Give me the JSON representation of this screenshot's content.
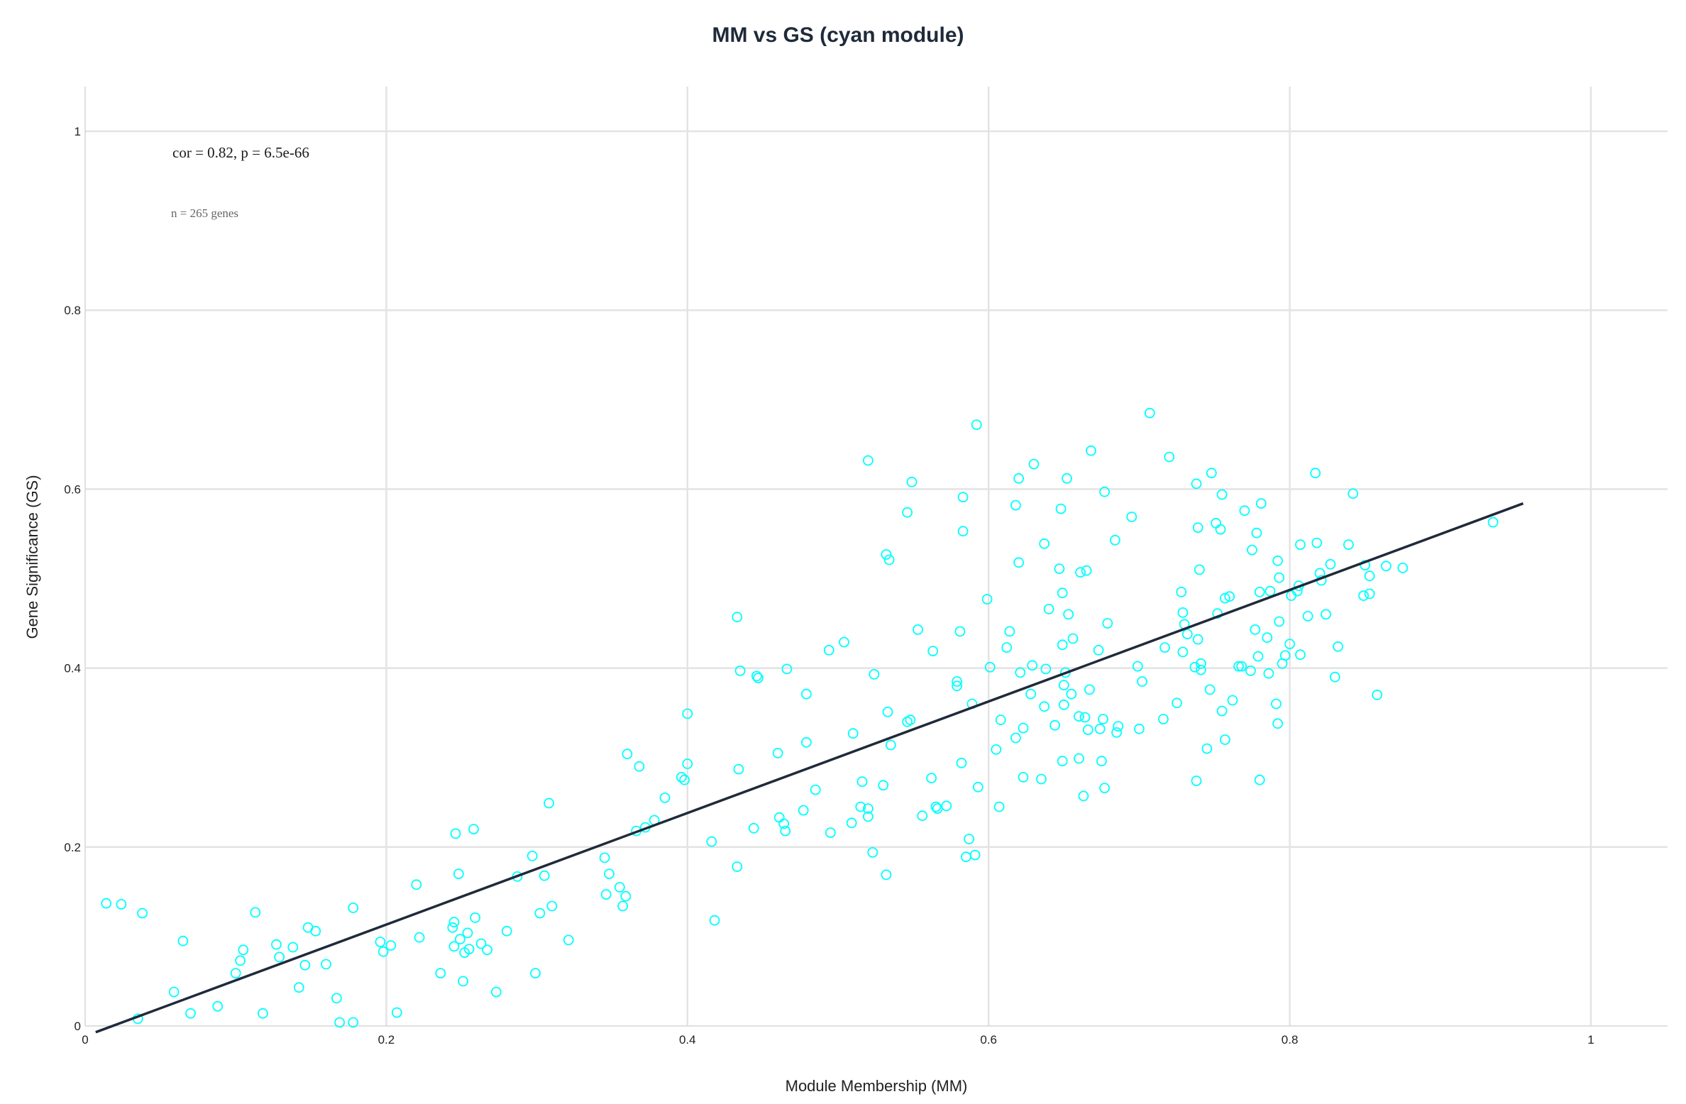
{
  "chart_data": {
    "type": "scatter",
    "title": "MM vs GS (cyan module)",
    "xlabel": "Module Membership (MM)",
    "ylabel": "Gene Significance (GS)",
    "xlim": [
      0,
      1.05
    ],
    "ylim": [
      0,
      1.05
    ],
    "x_ticks": [
      0,
      0.2,
      0.4,
      0.6,
      0.8,
      1
    ],
    "y_ticks": [
      0,
      0.2,
      0.4,
      0.6,
      0.8,
      1
    ],
    "x_tick_labels": [
      "0",
      "0.2",
      "0.4",
      "0.6",
      "0.8",
      "1"
    ],
    "y_tick_labels": [
      "0",
      "0.2",
      "0.4",
      "0.6",
      "0.8",
      "1"
    ],
    "grid": true,
    "marker_color": "#00ffff",
    "line_color": "#1f2a3a",
    "annotation_main": "cor = 0.82, p = 6.5e-66",
    "annotation_sub": "n = 265 genes",
    "fit_line": {
      "x": [
        0.007,
        0.955
      ],
      "y": [
        -0.007,
        0.584
      ]
    },
    "points": [
      [
        0.014,
        0.137
      ],
      [
        0.024,
        0.136
      ],
      [
        0.038,
        0.126
      ],
      [
        0.035,
        0.008
      ],
      [
        0.059,
        0.038
      ],
      [
        0.065,
        0.095
      ],
      [
        0.07,
        0.014
      ],
      [
        0.088,
        0.022
      ],
      [
        0.1,
        0.059
      ],
      [
        0.103,
        0.073
      ],
      [
        0.105,
        0.085
      ],
      [
        0.113,
        0.127
      ],
      [
        0.118,
        0.014
      ],
      [
        0.127,
        0.091
      ],
      [
        0.129,
        0.077
      ],
      [
        0.138,
        0.088
      ],
      [
        0.142,
        0.043
      ],
      [
        0.146,
        0.068
      ],
      [
        0.148,
        0.11
      ],
      [
        0.153,
        0.106
      ],
      [
        0.16,
        0.069
      ],
      [
        0.167,
        0.031
      ],
      [
        0.169,
        0.004
      ],
      [
        0.178,
        0.132
      ],
      [
        0.178,
        0.004
      ],
      [
        0.196,
        0.094
      ],
      [
        0.198,
        0.083
      ],
      [
        0.203,
        0.09
      ],
      [
        0.207,
        0.015
      ],
      [
        0.22,
        0.158
      ],
      [
        0.222,
        0.099
      ],
      [
        0.236,
        0.059
      ],
      [
        0.244,
        0.11
      ],
      [
        0.245,
        0.116
      ],
      [
        0.245,
        0.089
      ],
      [
        0.246,
        0.215
      ],
      [
        0.248,
        0.17
      ],
      [
        0.249,
        0.097
      ],
      [
        0.251,
        0.05
      ],
      [
        0.252,
        0.082
      ],
      [
        0.254,
        0.104
      ],
      [
        0.255,
        0.086
      ],
      [
        0.258,
        0.22
      ],
      [
        0.259,
        0.121
      ],
      [
        0.263,
        0.092
      ],
      [
        0.267,
        0.085
      ],
      [
        0.273,
        0.038
      ],
      [
        0.28,
        0.106
      ],
      [
        0.287,
        0.167
      ],
      [
        0.297,
        0.19
      ],
      [
        0.299,
        0.059
      ],
      [
        0.302,
        0.126
      ],
      [
        0.305,
        0.168
      ],
      [
        0.308,
        0.249
      ],
      [
        0.31,
        0.134
      ],
      [
        0.321,
        0.096
      ],
      [
        0.345,
        0.188
      ],
      [
        0.346,
        0.147
      ],
      [
        0.348,
        0.17
      ],
      [
        0.355,
        0.155
      ],
      [
        0.357,
        0.134
      ],
      [
        0.359,
        0.145
      ],
      [
        0.36,
        0.304
      ],
      [
        0.366,
        0.218
      ],
      [
        0.368,
        0.29
      ],
      [
        0.372,
        0.222
      ],
      [
        0.378,
        0.23
      ],
      [
        0.385,
        0.255
      ],
      [
        0.396,
        0.278
      ],
      [
        0.398,
        0.275
      ],
      [
        0.4,
        0.293
      ],
      [
        0.4,
        0.349
      ],
      [
        0.416,
        0.206
      ],
      [
        0.418,
        0.118
      ],
      [
        0.433,
        0.457
      ],
      [
        0.433,
        0.178
      ],
      [
        0.434,
        0.287
      ],
      [
        0.435,
        0.397
      ],
      [
        0.444,
        0.221
      ],
      [
        0.446,
        0.391
      ],
      [
        0.447,
        0.389
      ],
      [
        0.46,
        0.305
      ],
      [
        0.461,
        0.233
      ],
      [
        0.464,
        0.226
      ],
      [
        0.465,
        0.218
      ],
      [
        0.466,
        0.399
      ],
      [
        0.477,
        0.241
      ],
      [
        0.479,
        0.371
      ],
      [
        0.479,
        0.317
      ],
      [
        0.485,
        0.264
      ],
      [
        0.494,
        0.42
      ],
      [
        0.495,
        0.216
      ],
      [
        0.504,
        0.429
      ],
      [
        0.509,
        0.227
      ],
      [
        0.51,
        0.327
      ],
      [
        0.515,
        0.245
      ],
      [
        0.516,
        0.273
      ],
      [
        0.52,
        0.234
      ],
      [
        0.52,
        0.243
      ],
      [
        0.52,
        0.632
      ],
      [
        0.523,
        0.194
      ],
      [
        0.524,
        0.393
      ],
      [
        0.53,
        0.269
      ],
      [
        0.532,
        0.527
      ],
      [
        0.532,
        0.169
      ],
      [
        0.533,
        0.351
      ],
      [
        0.534,
        0.521
      ],
      [
        0.535,
        0.314
      ],
      [
        0.546,
        0.34
      ],
      [
        0.546,
        0.574
      ],
      [
        0.548,
        0.342
      ],
      [
        0.549,
        0.608
      ],
      [
        0.553,
        0.443
      ],
      [
        0.556,
        0.235
      ],
      [
        0.562,
        0.277
      ],
      [
        0.563,
        0.419
      ],
      [
        0.565,
        0.245
      ],
      [
        0.566,
        0.243
      ],
      [
        0.572,
        0.246
      ],
      [
        0.579,
        0.385
      ],
      [
        0.579,
        0.38
      ],
      [
        0.581,
        0.441
      ],
      [
        0.582,
        0.294
      ],
      [
        0.583,
        0.591
      ],
      [
        0.583,
        0.553
      ],
      [
        0.585,
        0.189
      ],
      [
        0.587,
        0.209
      ],
      [
        0.589,
        0.36
      ],
      [
        0.591,
        0.191
      ],
      [
        0.592,
        0.672
      ],
      [
        0.593,
        0.267
      ],
      [
        0.599,
        0.477
      ],
      [
        0.601,
        0.401
      ],
      [
        0.605,
        0.309
      ],
      [
        0.607,
        0.245
      ],
      [
        0.608,
        0.342
      ],
      [
        0.612,
        0.423
      ],
      [
        0.614,
        0.441
      ],
      [
        0.618,
        0.582
      ],
      [
        0.618,
        0.322
      ],
      [
        0.62,
        0.518
      ],
      [
        0.62,
        0.612
      ],
      [
        0.621,
        0.395
      ],
      [
        0.623,
        0.278
      ],
      [
        0.623,
        0.333
      ],
      [
        0.628,
        0.371
      ],
      [
        0.629,
        0.403
      ],
      [
        0.63,
        0.628
      ],
      [
        0.635,
        0.276
      ],
      [
        0.637,
        0.539
      ],
      [
        0.637,
        0.357
      ],
      [
        0.638,
        0.399
      ],
      [
        0.64,
        0.466
      ],
      [
        0.644,
        0.336
      ],
      [
        0.647,
        0.511
      ],
      [
        0.648,
        0.578
      ],
      [
        0.649,
        0.296
      ],
      [
        0.649,
        0.426
      ],
      [
        0.649,
        0.484
      ],
      [
        0.65,
        0.381
      ],
      [
        0.65,
        0.359
      ],
      [
        0.651,
        0.395
      ],
      [
        0.652,
        0.612
      ],
      [
        0.653,
        0.46
      ],
      [
        0.655,
        0.371
      ],
      [
        0.656,
        0.433
      ],
      [
        0.66,
        0.299
      ],
      [
        0.66,
        0.346
      ],
      [
        0.661,
        0.507
      ],
      [
        0.663,
        0.257
      ],
      [
        0.664,
        0.345
      ],
      [
        0.665,
        0.509
      ],
      [
        0.666,
        0.331
      ],
      [
        0.667,
        0.376
      ],
      [
        0.668,
        0.643
      ],
      [
        0.673,
        0.42
      ],
      [
        0.674,
        0.332
      ],
      [
        0.675,
        0.296
      ],
      [
        0.676,
        0.343
      ],
      [
        0.677,
        0.266
      ],
      [
        0.677,
        0.597
      ],
      [
        0.679,
        0.45
      ],
      [
        0.684,
        0.543
      ],
      [
        0.685,
        0.328
      ],
      [
        0.686,
        0.335
      ],
      [
        0.695,
        0.569
      ],
      [
        0.699,
        0.402
      ],
      [
        0.7,
        0.332
      ],
      [
        0.702,
        0.385
      ],
      [
        0.707,
        0.685
      ],
      [
        0.716,
        0.343
      ],
      [
        0.717,
        0.423
      ],
      [
        0.72,
        0.636
      ],
      [
        0.725,
        0.361
      ],
      [
        0.728,
        0.485
      ],
      [
        0.729,
        0.418
      ],
      [
        0.729,
        0.462
      ],
      [
        0.73,
        0.449
      ],
      [
        0.732,
        0.438
      ],
      [
        0.737,
        0.401
      ],
      [
        0.738,
        0.274
      ],
      [
        0.738,
        0.606
      ],
      [
        0.739,
        0.432
      ],
      [
        0.739,
        0.557
      ],
      [
        0.74,
        0.51
      ],
      [
        0.741,
        0.405
      ],
      [
        0.741,
        0.398
      ],
      [
        0.745,
        0.31
      ],
      [
        0.747,
        0.376
      ],
      [
        0.748,
        0.618
      ],
      [
        0.751,
        0.562
      ],
      [
        0.752,
        0.461
      ],
      [
        0.754,
        0.555
      ],
      [
        0.755,
        0.594
      ],
      [
        0.755,
        0.352
      ],
      [
        0.757,
        0.32
      ],
      [
        0.757,
        0.478
      ],
      [
        0.76,
        0.48
      ],
      [
        0.762,
        0.364
      ],
      [
        0.766,
        0.402
      ],
      [
        0.768,
        0.402
      ],
      [
        0.77,
        0.576
      ],
      [
        0.774,
        0.397
      ],
      [
        0.775,
        0.532
      ],
      [
        0.777,
        0.443
      ],
      [
        0.778,
        0.551
      ],
      [
        0.779,
        0.413
      ],
      [
        0.78,
        0.275
      ],
      [
        0.78,
        0.485
      ],
      [
        0.781,
        0.584
      ],
      [
        0.785,
        0.434
      ],
      [
        0.786,
        0.394
      ],
      [
        0.787,
        0.486
      ],
      [
        0.791,
        0.36
      ],
      [
        0.792,
        0.338
      ],
      [
        0.792,
        0.52
      ],
      [
        0.793,
        0.452
      ],
      [
        0.793,
        0.501
      ],
      [
        0.795,
        0.405
      ],
      [
        0.797,
        0.414
      ],
      [
        0.8,
        0.427
      ],
      [
        0.801,
        0.481
      ],
      [
        0.805,
        0.486
      ],
      [
        0.806,
        0.492
      ],
      [
        0.807,
        0.538
      ],
      [
        0.807,
        0.415
      ],
      [
        0.812,
        0.458
      ],
      [
        0.817,
        0.618
      ],
      [
        0.818,
        0.54
      ],
      [
        0.82,
        0.506
      ],
      [
        0.821,
        0.498
      ],
      [
        0.824,
        0.46
      ],
      [
        0.827,
        0.516
      ],
      [
        0.83,
        0.39
      ],
      [
        0.832,
        0.424
      ],
      [
        0.839,
        0.538
      ],
      [
        0.842,
        0.595
      ],
      [
        0.849,
        0.481
      ],
      [
        0.85,
        0.515
      ],
      [
        0.853,
        0.503
      ],
      [
        0.853,
        0.483
      ],
      [
        0.858,
        0.37
      ],
      [
        0.864,
        0.514
      ],
      [
        0.875,
        0.512
      ],
      [
        0.935,
        0.563
      ]
    ]
  }
}
